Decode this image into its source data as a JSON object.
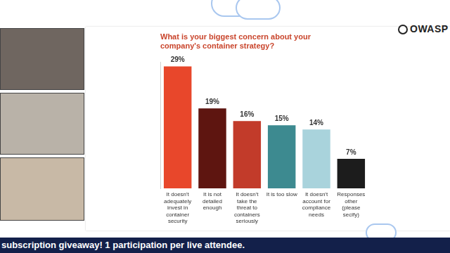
{
  "chart_data": {
    "type": "bar",
    "title": "What is your biggest concern about your company's container strategy?",
    "categories": [
      "It doesn't adequately invest in container security",
      "It is not detailed enough",
      "It doesn't take the threat to containers seriously",
      "It is too slow",
      "It doesn't account for compliance needs",
      "Responses other (please secify)"
    ],
    "values": [
      29,
      19,
      16,
      15,
      14,
      7
    ],
    "value_labels": [
      "29%",
      "19%",
      "16%",
      "15%",
      "14%",
      "7%"
    ],
    "colors": [
      "#e8472b",
      "#5e1510",
      "#c23b2a",
      "#3d8a90",
      "#a9d3dc",
      "#1c1c1c"
    ],
    "ylim": [
      0,
      30
    ],
    "grid": false,
    "data_labels": true,
    "tick_labels": "x"
  },
  "logo": "OWASP",
  "banner": "subscription giveaway! 1 participation per live attendee."
}
